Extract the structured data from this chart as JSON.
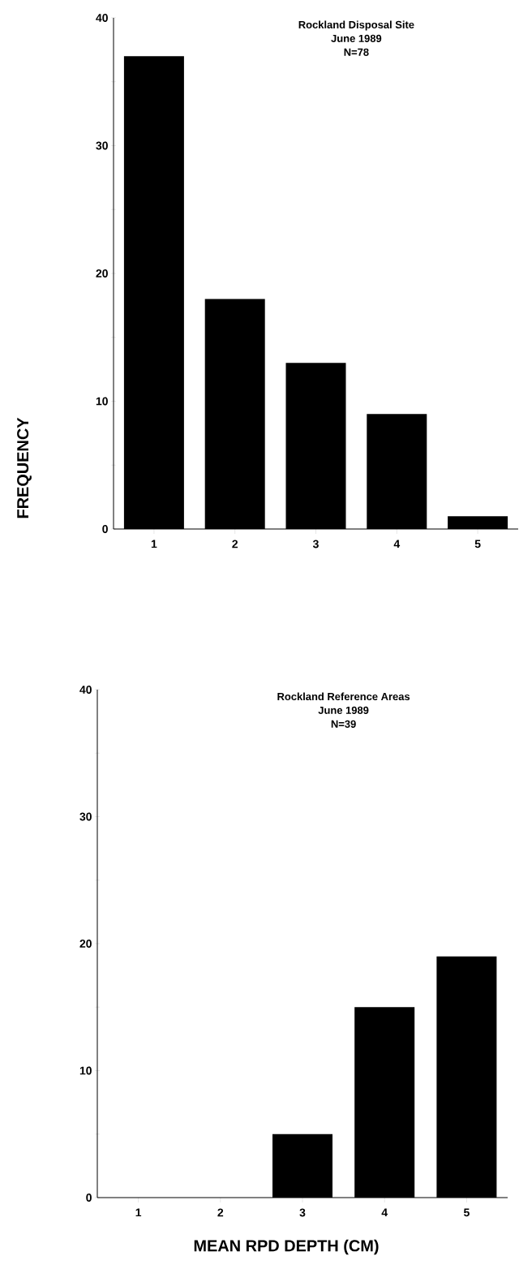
{
  "chart_data": [
    {
      "type": "bar",
      "title": "Rockland Disposal Site",
      "subtitle": "June 1989",
      "annotations": [
        "N=78"
      ],
      "ylabel": "FREQUENCY",
      "categories": [
        "1",
        "2",
        "3",
        "4",
        "5"
      ],
      "values": [
        37,
        18,
        13,
        9,
        1
      ],
      "color": "#000000",
      "ylim": [
        0,
        40
      ],
      "yticks": [
        0,
        {
          "value": 5,
          "label": null
        },
        10,
        {
          "value": 15,
          "label": null
        },
        20,
        {
          "value": 25,
          "label": null
        },
        30,
        {
          "value": 35,
          "label": null
        },
        40
      ]
    },
    {
      "type": "bar",
      "title": "Rockland Reference Areas",
      "subtitle": "June 1989",
      "annotations": [
        "N=39"
      ],
      "xlabel": "MEAN RPD DEPTH (CM)",
      "categories": [
        "1",
        "2",
        "3",
        "4",
        "5"
      ],
      "values": [
        0,
        0,
        5,
        15,
        19
      ],
      "color": "#000000",
      "ylim": [
        0,
        40
      ],
      "yticks": [
        0,
        {
          "value": 5,
          "label": null
        },
        10,
        {
          "value": 15,
          "label": null
        },
        20,
        {
          "value": 25,
          "label": null
        },
        30,
        {
          "value": 35,
          "label": null
        },
        40
      ]
    }
  ]
}
